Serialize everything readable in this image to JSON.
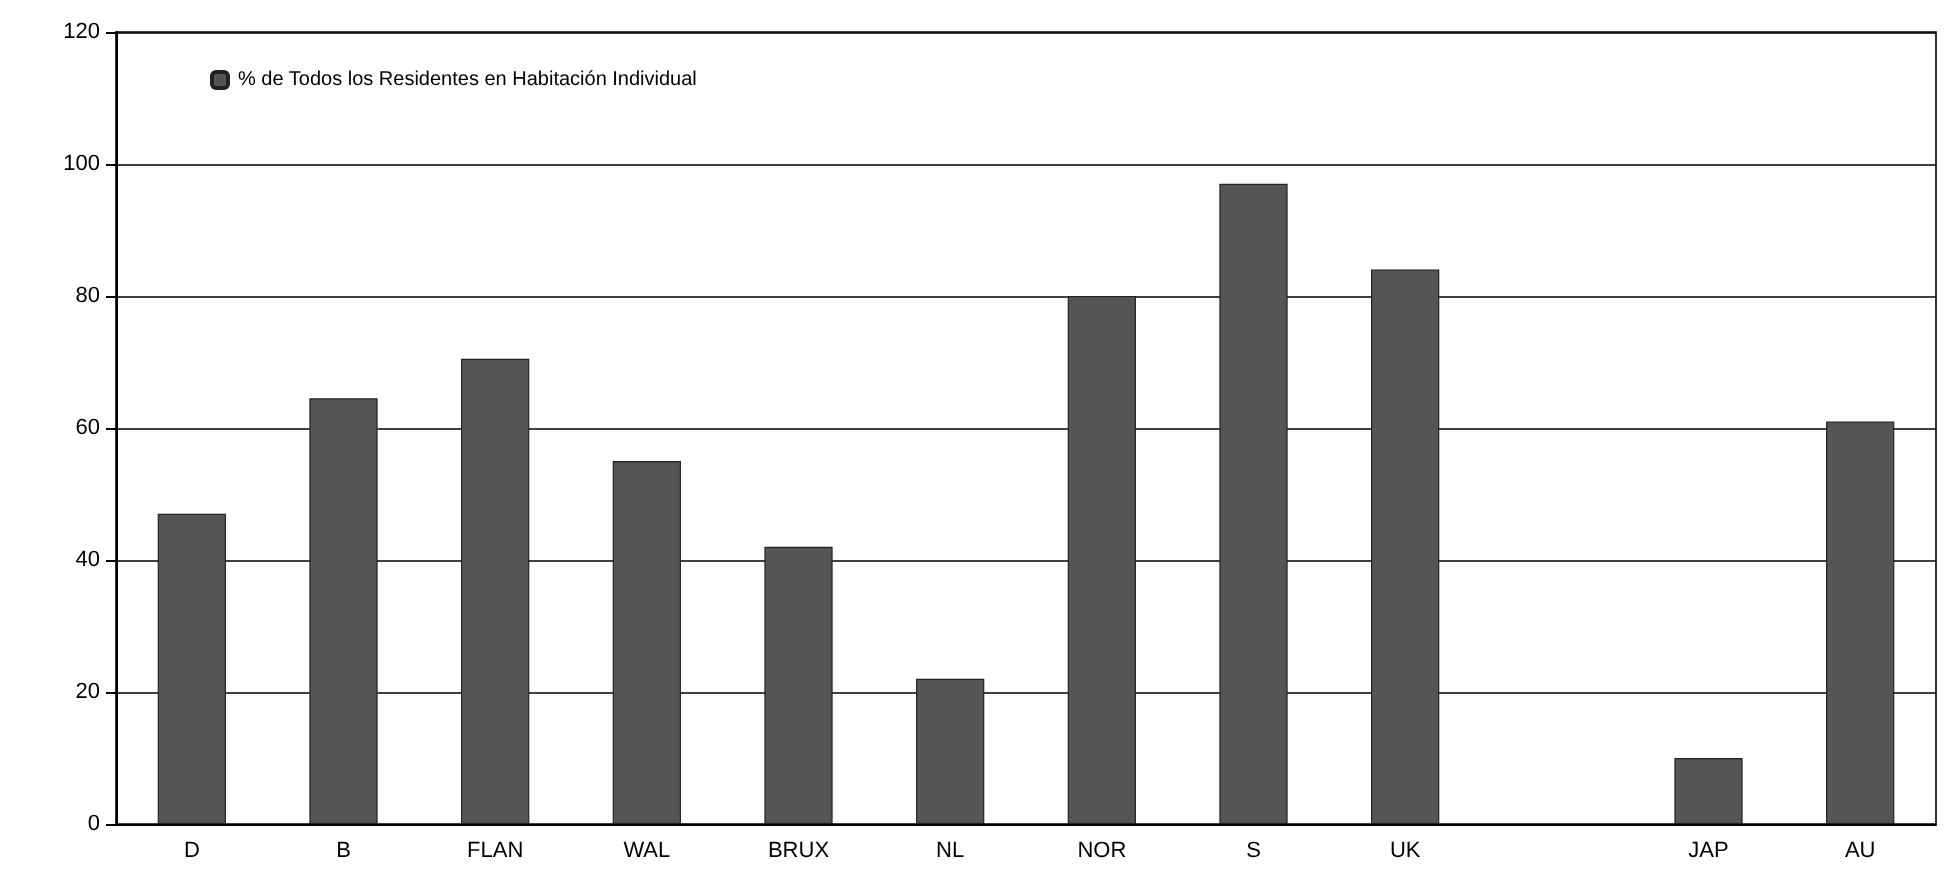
{
  "chart_data": {
    "type": "bar",
    "categories": [
      "D",
      "B",
      "FLAN",
      "WAL",
      "BRUX",
      "NL",
      "NOR",
      "S",
      "UK",
      null,
      "JAP",
      "AU"
    ],
    "series": [
      {
        "name": "% de Todos los Residentes en Habitación Individual",
        "color": "#555555",
        "values": [
          47,
          64.5,
          70.5,
          55,
          42,
          22,
          80,
          97,
          84,
          null,
          10,
          61
        ]
      }
    ],
    "ylim": [
      0,
      120
    ],
    "yticks": [
      0,
      20,
      40,
      60,
      80,
      100,
      120
    ],
    "grid": "y",
    "legend": "top left"
  }
}
